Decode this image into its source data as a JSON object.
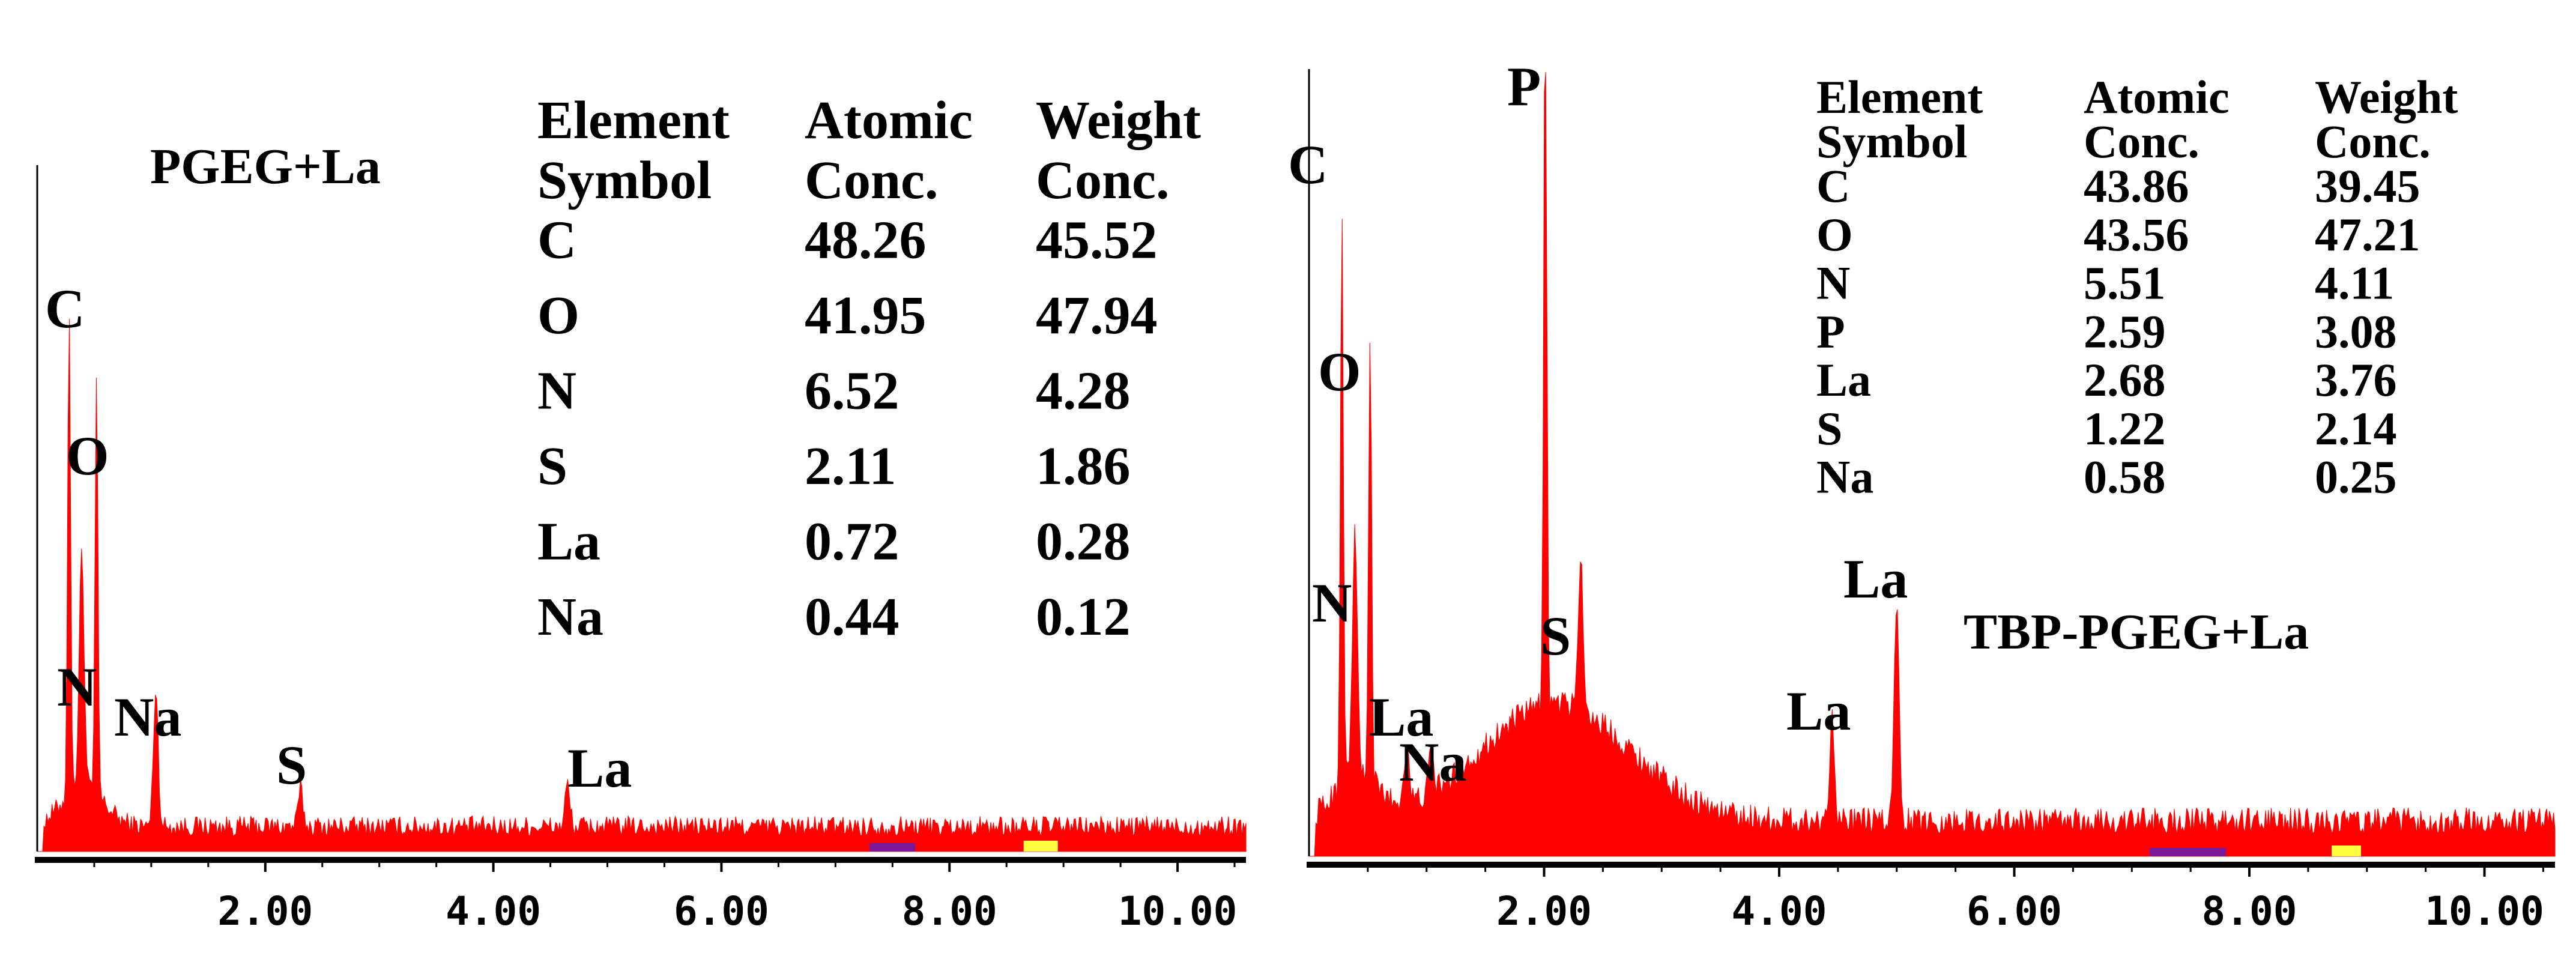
{
  "chart_data": [
    {
      "type": "area",
      "title": "PGEG+La",
      "xlabel": "",
      "ylabel": "",
      "xlim": [
        0,
        10.6
      ],
      "ylim": [
        0,
        1000
      ],
      "x_ticks": [
        "2.00",
        "4.00",
        "6.00",
        "8.00",
        "10.00"
      ],
      "x_tick_values": [
        2,
        4,
        6,
        8,
        10
      ],
      "grid": false,
      "colors": {
        "fill": "#ff0000",
        "axis": "#000000"
      },
      "peaks": [
        {
          "label": "C",
          "x": 0.28,
          "y": 720
        },
        {
          "label": "O",
          "x": 0.52,
          "y": 600
        },
        {
          "label": "N",
          "x": 0.39,
          "y": 345
        },
        {
          "label": "Na",
          "x": 1.04,
          "y": 200
        },
        {
          "label": "S",
          "x": 2.31,
          "y": 55
        },
        {
          "label": "La",
          "x": 4.65,
          "y": 60
        }
      ],
      "table": {
        "headers": [
          [
            "Element",
            "Symbol"
          ],
          [
            "Atomic",
            "Conc."
          ],
          [
            "Weight",
            "Conc."
          ]
        ],
        "rows": [
          [
            "C",
            "48.26",
            "45.52"
          ],
          [
            "O",
            "41.95",
            "47.94"
          ],
          [
            "N",
            "6.52",
            "4.28"
          ],
          [
            "S",
            "2.11",
            "1.86"
          ],
          [
            "La",
            "0.72",
            "0.28"
          ],
          [
            "Na",
            "0.44",
            "0.12"
          ]
        ]
      }
    },
    {
      "type": "area",
      "title": "TBP-PGEG+La",
      "xlabel": "",
      "ylabel": "",
      "xlim": [
        0,
        10.6
      ],
      "ylim": [
        0,
        1000
      ],
      "x_ticks": [
        "2.00",
        "4.00",
        "6.00",
        "8.00",
        "10.00"
      ],
      "x_tick_values": [
        2,
        4,
        6,
        8,
        10
      ],
      "grid": false,
      "colors": {
        "fill": "#ff0000",
        "axis": "#000000"
      },
      "peaks": [
        {
          "label": "C",
          "x": 0.28,
          "y": 720
        },
        {
          "label": "O",
          "x": 0.52,
          "y": 560
        },
        {
          "label": "N",
          "x": 0.39,
          "y": 300
        },
        {
          "label": "P",
          "x": 2.01,
          "y": 960
        },
        {
          "label": "S",
          "x": 2.31,
          "y": 190
        },
        {
          "label": "La",
          "x": 4.45,
          "y": 135
        },
        {
          "label": "La",
          "x": 5.0,
          "y": 285
        },
        {
          "label": "La",
          "x": 0.83,
          "y": 80
        },
        {
          "label": "Na",
          "x": 1.04,
          "y": 50
        }
      ],
      "table": {
        "headers": [
          [
            "Element",
            "Symbol"
          ],
          [
            "Atomic",
            "Conc."
          ],
          [
            "Weight",
            "Conc."
          ]
        ],
        "rows": [
          [
            "C",
            "43.86",
            "39.45"
          ],
          [
            "O",
            "43.56",
            "47.21"
          ],
          [
            "N",
            "5.51",
            "4.11"
          ],
          [
            "P",
            "2.59",
            "3.08"
          ],
          [
            "La",
            "2.68",
            "3.76"
          ],
          [
            "S",
            "1.22",
            "2.14"
          ],
          [
            "Na",
            "0.58",
            "0.25"
          ]
        ]
      }
    }
  ]
}
